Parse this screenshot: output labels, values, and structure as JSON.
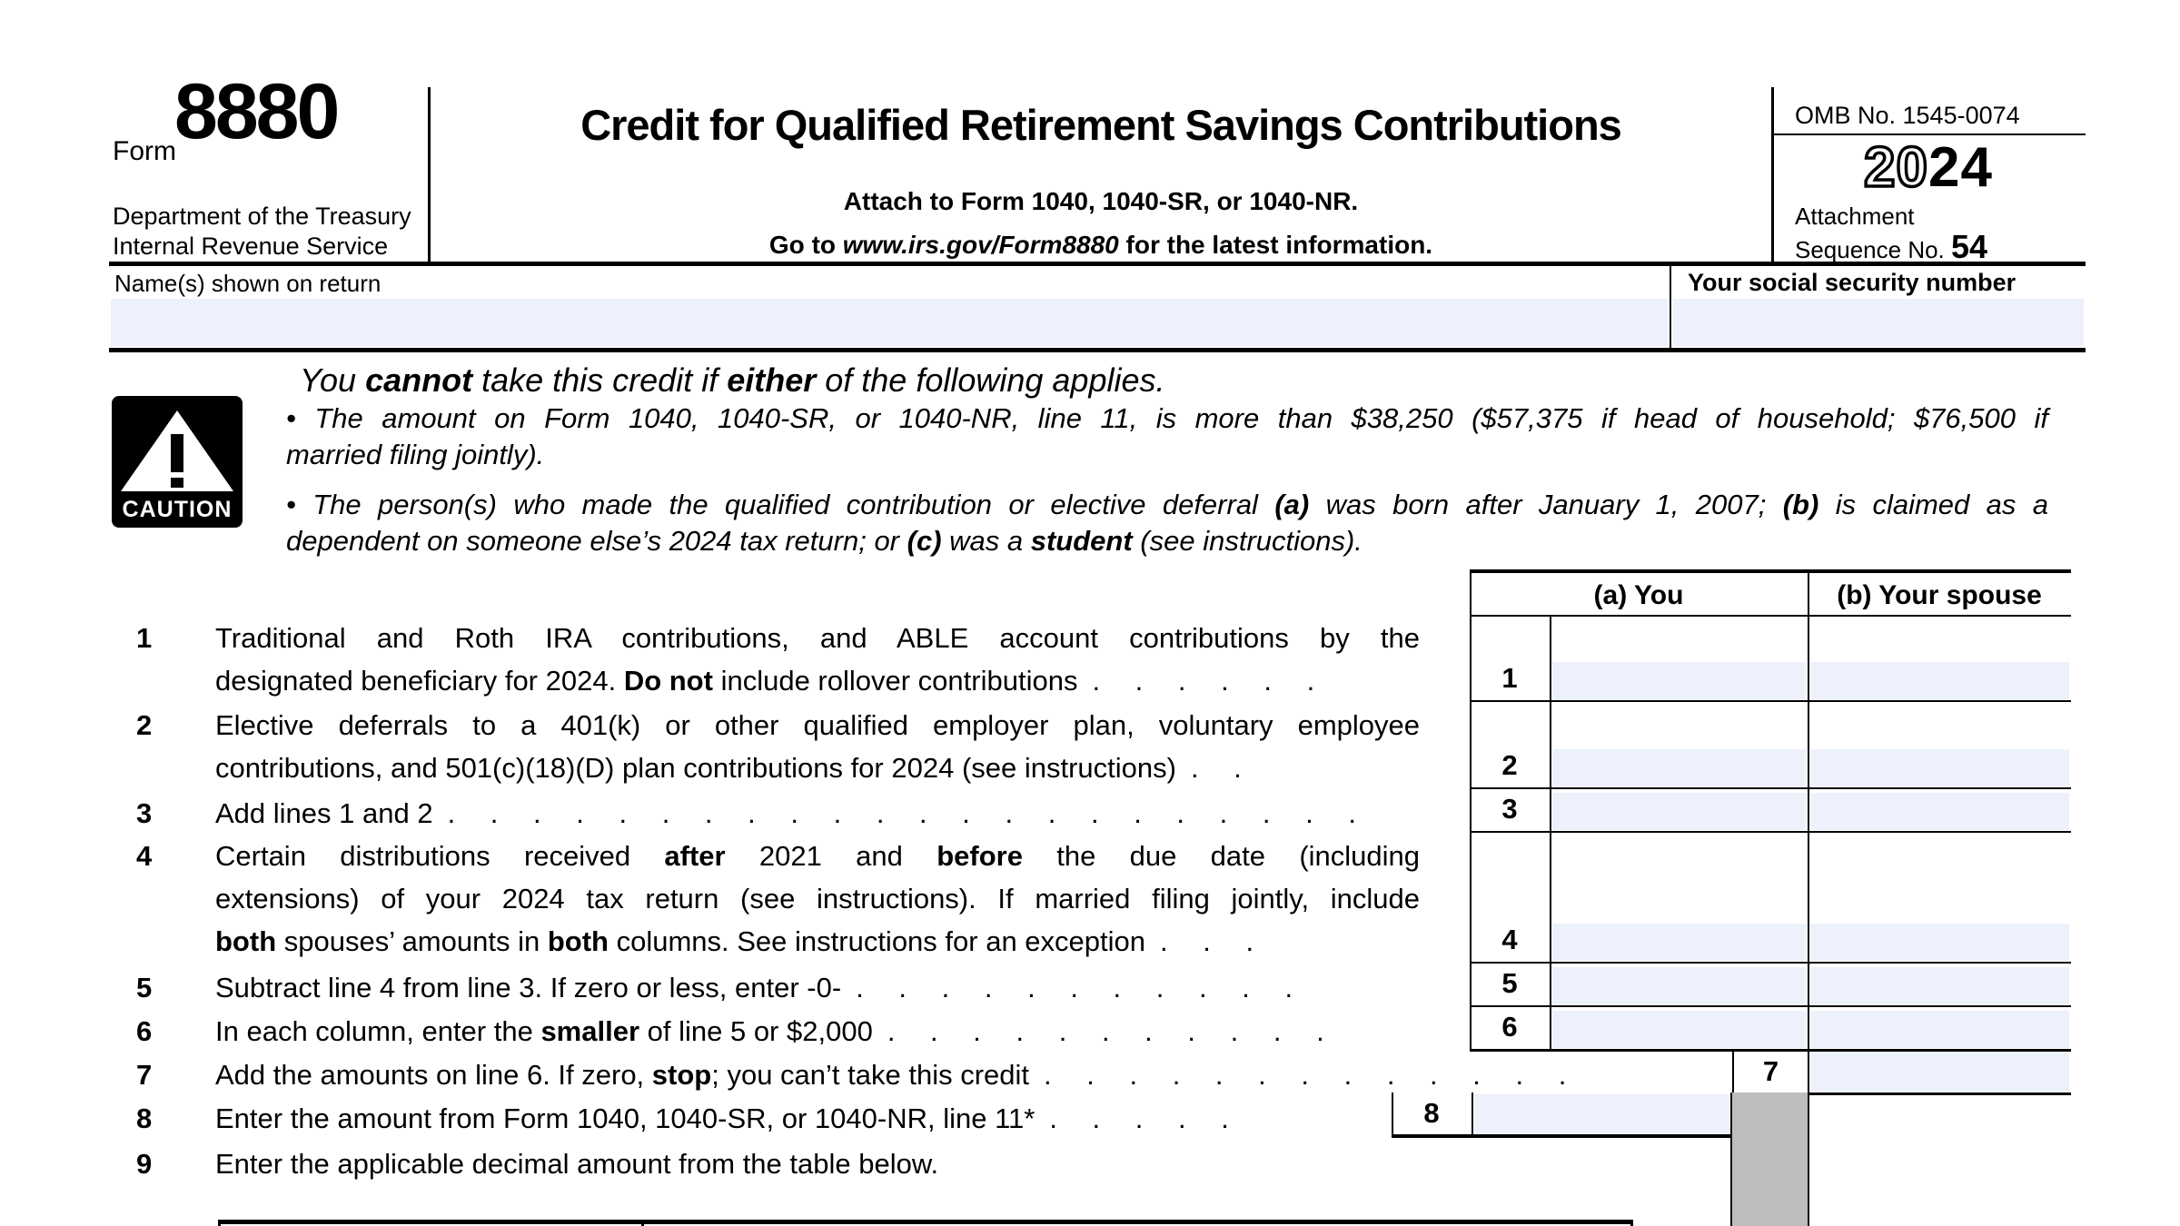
{
  "colors": {
    "field_blue": "#edf1fb",
    "shaded_gray": "#bdbdbd"
  },
  "header": {
    "form_label": "Form",
    "form_number": "8880",
    "agency_line1": "Department of the Treasury",
    "agency_line2": "Internal Revenue Service",
    "title": "Credit for Qualified Retirement Savings Contributions",
    "attach_line": "Attach to Form 1040, 1040-SR, or 1040-NR.",
    "goto_line": [
      "Go to ",
      [
        "i",
        "www.irs.gov/Form8880"
      ],
      " for the latest information."
    ],
    "omb": "OMB No. 1545-0074",
    "year_outline": "20",
    "year_solid": "24",
    "attachment_label": "Attachment",
    "sequence_label": "Sequence No.",
    "sequence_no": "54"
  },
  "identity": {
    "name_label": "Name(s) shown on return",
    "name_value": "",
    "ssn_label": "Your social security number",
    "ssn_value": ""
  },
  "caution": {
    "icon_label": "CAUTION",
    "heading": [
      "You ",
      [
        "b",
        "cannot"
      ],
      " take this credit if ",
      [
        "b",
        "either"
      ],
      " of the following applies."
    ],
    "bullet1": {
      "lines": [
        [
          "• The amount on Form 1040, 1040-SR, or 1040-NR, line 11, is more than $38,250 ($57,375 if head of household; $76,500 if"
        ],
        [
          "married filing jointly)."
        ]
      ]
    },
    "bullet2": {
      "lines": [
        [
          "• The person(s) who made the qualified contribution or elective deferral ",
          [
            "b",
            "(a)"
          ],
          " was born after January 1, 2007; ",
          [
            "b",
            "(b)"
          ],
          " is claimed as a"
        ],
        [
          "dependent on someone else’s 2024 tax return; or ",
          [
            "b",
            "(c)"
          ],
          " was a ",
          [
            "b",
            "student"
          ],
          " (see instructions)."
        ]
      ]
    }
  },
  "table": {
    "col_a_header": "(a) You",
    "col_b_header": "(b) Your spouse",
    "row_numbers": [
      "1",
      "2",
      "3",
      "4",
      "5",
      "6",
      "7",
      "8"
    ]
  },
  "lines": [
    {
      "no": "1",
      "para": {
        "lines": [
          [
            "Traditional and Roth IRA contributions, and ABLE account contributions by the"
          ],
          [
            "designated beneficiary for 2024. ",
            [
              "b",
              "Do not"
            ],
            " include rollover contributions"
          ]
        ],
        "leader": ". . . . . ."
      }
    },
    {
      "no": "2",
      "para": {
        "lines": [
          [
            "Elective deferrals to a 401(k) or other qualified employer plan, voluntary employee"
          ],
          [
            "contributions, and 501(c)(18)(D) plan contributions for 2024 (see instructions)"
          ]
        ],
        "leader": ". ."
      }
    },
    {
      "no": "3",
      "para": {
        "lines": [
          [
            "Add lines 1 and 2"
          ]
        ],
        "leader": ". . . . . . . . . . . . . . . . . . . . . ."
      }
    },
    {
      "no": "4",
      "para": {
        "lines": [
          [
            "Certain distributions received ",
            [
              "b",
              "after"
            ],
            " 2021 and ",
            [
              "b",
              "before"
            ],
            " the due date (including"
          ],
          [
            "extensions) of your 2024 tax return (see instructions). If married filing jointly, include"
          ],
          [
            [
              "b",
              "both"
            ],
            " spouses’ amounts in ",
            [
              "b",
              "both"
            ],
            " columns. See instructions for an exception"
          ]
        ],
        "leader": ". . ."
      }
    },
    {
      "no": "5",
      "para": {
        "lines": [
          [
            "Subtract line 4 from line 3. If zero or less, enter -0-"
          ]
        ],
        "leader": ". . . . . . . . . . ."
      }
    },
    {
      "no": "6",
      "para": {
        "lines": [
          [
            "In each column, enter the ",
            [
              "b",
              "smaller"
            ],
            " of line 5 or $2,000"
          ]
        ],
        "leader": ". . . . . . . . . . ."
      }
    },
    {
      "no": "7",
      "para": {
        "lines": [
          [
            "Add the amounts on line 6. If zero, ",
            [
              "b",
              "stop"
            ],
            "; you can’t take this credit"
          ]
        ],
        "leader": ". . . . . . . . . . . . ."
      }
    },
    {
      "no": "8",
      "para": {
        "lines": [
          [
            "Enter the amount from Form 1040, 1040-SR, or 1040-NR, line 11*"
          ]
        ],
        "leader": ". . . . ."
      }
    },
    {
      "no": "9",
      "para": {
        "lines": [
          [
            "Enter the applicable decimal amount from the table below."
          ]
        ]
      }
    }
  ]
}
